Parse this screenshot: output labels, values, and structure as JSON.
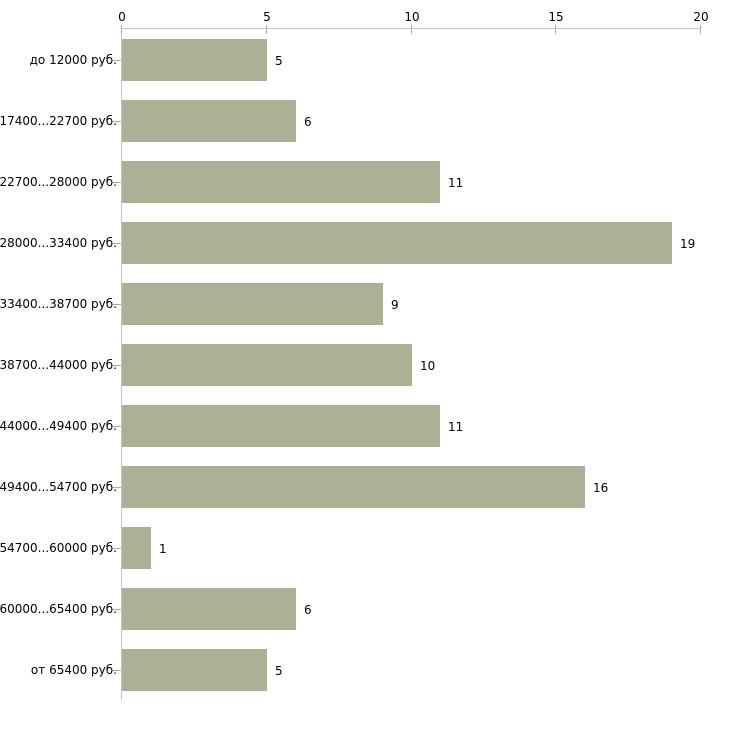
{
  "chart_data": {
    "type": "bar",
    "orientation": "horizontal",
    "title": "",
    "xlabel": "",
    "ylabel": "",
    "categories": [
      "до 12000 руб.",
      "17400...22700 руб.",
      "22700...28000 руб.",
      "28000...33400 руб.",
      "33400...38700 руб.",
      "38700...44000 руб.",
      "44000...49400 руб.",
      "49400...54700 руб.",
      "54700...60000 руб.",
      "60000...65400 руб.",
      "от 65400 руб."
    ],
    "values": [
      5,
      6,
      11,
      19,
      9,
      10,
      11,
      16,
      1,
      6,
      5
    ],
    "value_labels": [
      "5",
      "6",
      "11",
      "19",
      "9",
      "10",
      "11",
      "16",
      "1",
      "6",
      "5"
    ],
    "x_ticks": [
      0,
      5,
      10,
      15,
      20
    ],
    "x_tick_labels": [
      "0",
      "5",
      "10",
      "15",
      "20"
    ],
    "xlim": [
      0,
      20
    ],
    "grid": false,
    "legend": false,
    "axis_position": "top",
    "colors": {
      "bar_fill": "#acb195",
      "axis_line": "#c6c6c0",
      "tick_mark": "#b2ae74",
      "text": "#000000",
      "background": "#ffffff"
    }
  }
}
